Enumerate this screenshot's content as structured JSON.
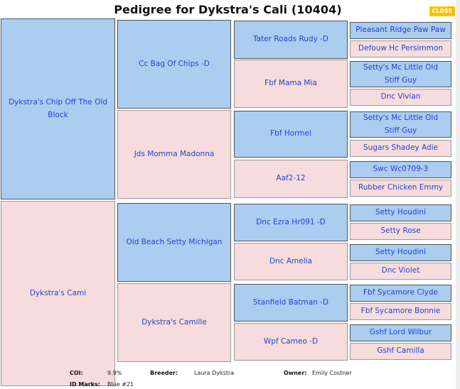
{
  "title": "Pedigree for Dykstra's Cali (10404)",
  "close_label": "CLOSE",
  "colors": {
    "sire": "#abcdf0",
    "dam": "#f6dcdc",
    "text": "#2543cf",
    "close": "#f5c400"
  },
  "pedigree": {
    "gen1": [
      "Dykstra's Chip Off The Old Block",
      "Dykstra's Cami"
    ],
    "gen2": [
      "Cc Bag Of Chips -D",
      "Jds Momma Madonna",
      "Old Beach Setty Michigan",
      "Dykstra's Camille"
    ],
    "gen3": [
      "Tater Roads Rudy -D",
      "Fbf Mama Mia",
      "Fbf Hormel",
      "Aaf2-12",
      "Dnc Ezra Hr091 -D",
      "Dnc Amelia",
      "Stanfield Batman -D",
      "Wpf Cameo -D"
    ],
    "gen4": [
      "Pleasant Ridge Paw Paw",
      "Defouw Hc Persimmon",
      "Setty's Mc Little Old Stiff Guy",
      "Dnc Vivian",
      "Setty's Mc Little Old Stiff Guy",
      "Sugars Shadey Adie",
      "Swc Wc0709-3",
      "Rubber Chicken Emmy",
      "Setty Houdini",
      "Setty Rose",
      "Setty Houdini",
      "Dnc Violet",
      "Fbf Sycamore Clyde",
      "Fbf Sycamore Bonnie",
      "Gshf Lord Wilbur",
      "Gshf Camilla"
    ]
  },
  "info": {
    "coi_label": "COI:",
    "coi_value": "9.9%",
    "breeder_label": "Breeder:",
    "breeder_value": "Laura Dykstra",
    "owner_label": "Owner:",
    "owner_value": "Emily Costner",
    "idmarks_label": "ID Marks:",
    "idmarks_value": "Blue #21"
  }
}
